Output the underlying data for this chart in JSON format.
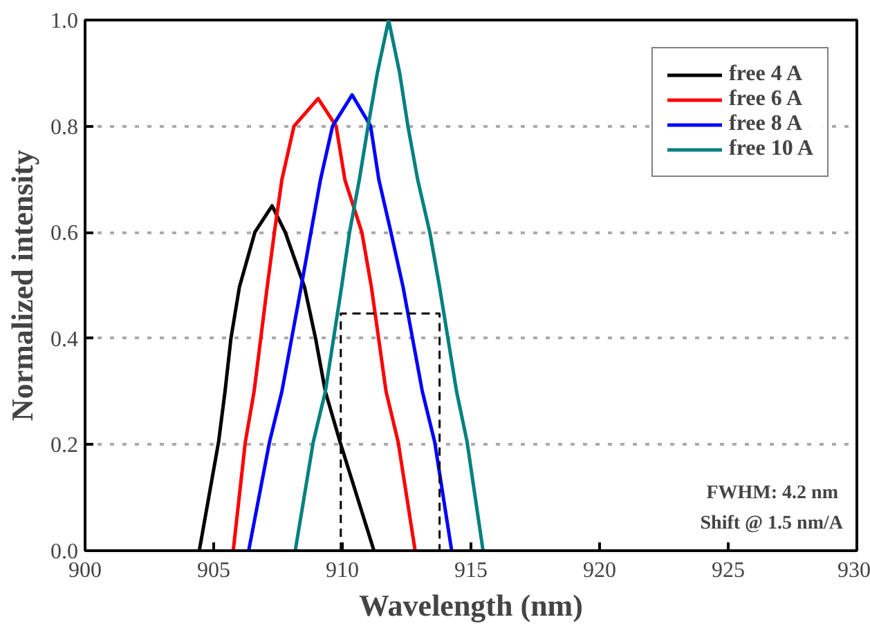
{
  "chart_data": {
    "type": "line",
    "xlabel": "Wavelength (nm)",
    "ylabel": "Normalized intensity",
    "xlim": [
      900,
      930
    ],
    "ylim": [
      0,
      1.0
    ],
    "xticks": [
      900,
      905,
      910,
      915,
      920,
      925,
      930
    ],
    "yticks": [
      {
        "value": 0,
        "label": "0.0"
      },
      {
        "value": 0.2,
        "label": "0.2"
      },
      {
        "value": 0.4,
        "label": "0.4"
      },
      {
        "value": 0.6,
        "label": "0.6"
      },
      {
        "value": 0.8,
        "label": "0.8"
      },
      {
        "value": 1.0,
        "label": "1.0"
      }
    ],
    "grid": "y",
    "legend": "top right",
    "line_style": "solid",
    "marker": "none",
    "series": [
      {
        "name": "free 4 A",
        "color": "#000000",
        "x": [
          904.44,
          905.19,
          905.44,
          905.67,
          906.0,
          906.6,
          907.27,
          907.78,
          908.53,
          908.96,
          909.34,
          909.91,
          911.23
        ],
        "values": [
          0,
          0.205,
          0.3,
          0.4,
          0.497,
          0.6,
          0.65,
          0.6,
          0.497,
          0.4,
          0.3,
          0.205,
          0
        ]
      },
      {
        "name": "free 6 A",
        "color": "#ff0000",
        "x": [
          905.76,
          906.23,
          906.57,
          907.08,
          907.36,
          907.65,
          908.12,
          909.06,
          909.76,
          910.1,
          910.76,
          911.13,
          911.7,
          912.17,
          912.83
        ],
        "values": [
          0,
          0.205,
          0.3,
          0.497,
          0.6,
          0.699,
          0.8,
          0.852,
          0.8,
          0.699,
          0.6,
          0.497,
          0.3,
          0.205,
          0
        ]
      },
      {
        "name": "free 8 A",
        "color": "#0000ff",
        "x": [
          906.36,
          907.17,
          907.65,
          908.4,
          908.78,
          909.15,
          909.62,
          910.38,
          911.1,
          911.42,
          911.89,
          912.36,
          913.11,
          913.59,
          914.25
        ],
        "values": [
          0,
          0.205,
          0.3,
          0.497,
          0.6,
          0.699,
          0.8,
          0.859,
          0.8,
          0.699,
          0.6,
          0.497,
          0.3,
          0.205,
          0
        ]
      },
      {
        "name": "free 10 A",
        "color": "#008080",
        "x": [
          908.17,
          908.87,
          909.34,
          909.97,
          910.28,
          910.66,
          911.0,
          911.36,
          911.8,
          912.23,
          912.55,
          912.93,
          913.4,
          913.78,
          914.44,
          914.85,
          915.47
        ],
        "values": [
          0,
          0.205,
          0.3,
          0.497,
          0.6,
          0.699,
          0.8,
          0.9,
          1.0,
          0.9,
          0.8,
          0.699,
          0.6,
          0.497,
          0.3,
          0.205,
          0
        ]
      },
      {
        "color": "#000000",
        "line_style": "dashed",
        "x": [
          909.94,
          909.94,
          913.78,
          913.78
        ],
        "values": [
          0,
          0.447,
          0.447,
          0
        ]
      }
    ],
    "annotations": [
      "FWHM:  4.2 nm",
      "Shift @ 1.5 nm/A"
    ]
  }
}
